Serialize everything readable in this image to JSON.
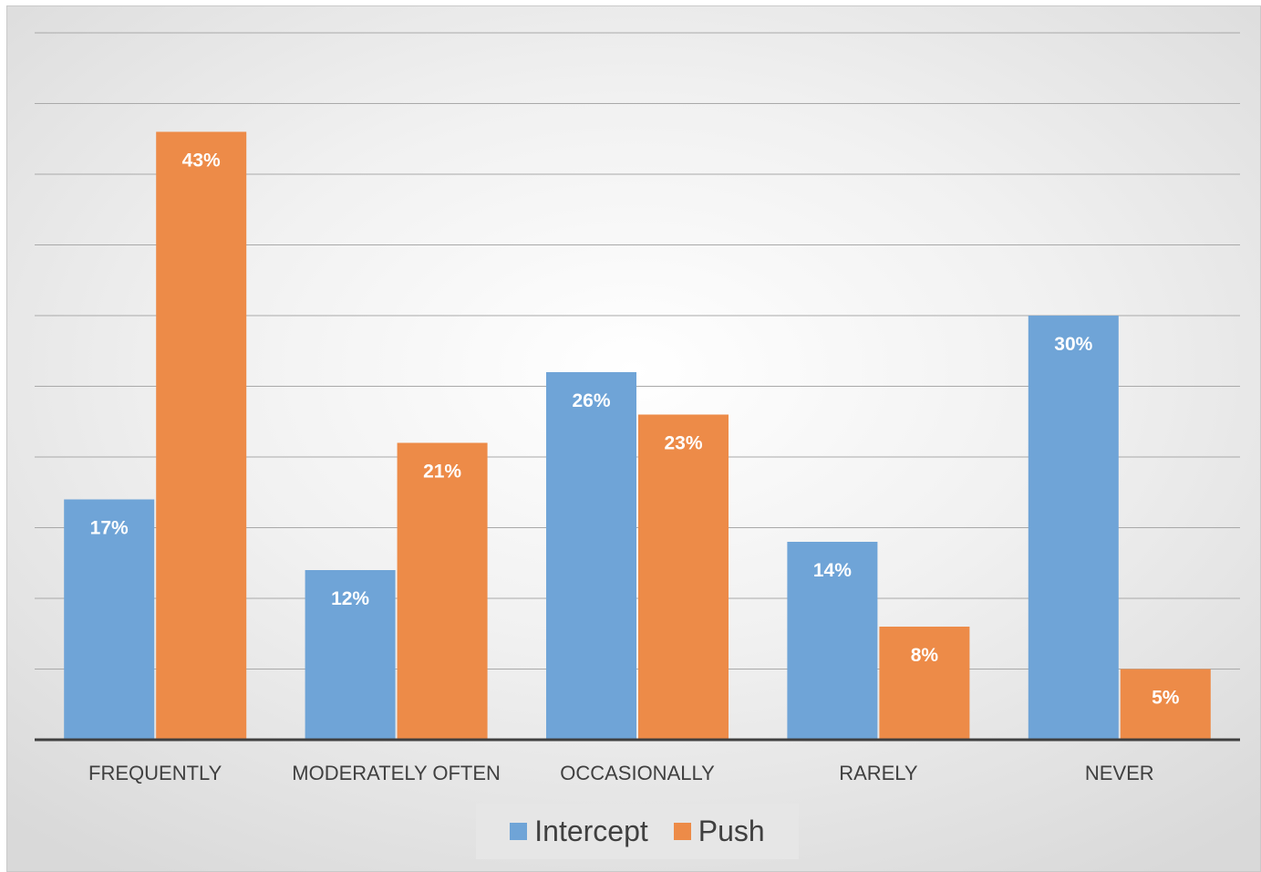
{
  "chart_data": {
    "type": "bar",
    "categories": [
      "FREQUENTLY",
      "MODERATELY OFTEN",
      "OCCASIONALLY",
      "RARELY",
      "NEVER"
    ],
    "series": [
      {
        "name": "Intercept",
        "values": [
          17,
          12,
          26,
          14,
          30
        ],
        "labels": [
          "17%",
          "12%",
          "26%",
          "14%",
          "30%"
        ],
        "color": "#6fa4d7"
      },
      {
        "name": "Push",
        "values": [
          43,
          21,
          23,
          8,
          5
        ],
        "labels": [
          "43%",
          "21%",
          "23%",
          "8%",
          "5%"
        ],
        "color": "#ed8b48"
      }
    ],
    "title": "",
    "xlabel": "",
    "ylabel": "",
    "ylim": [
      0,
      50
    ],
    "grid": true,
    "legend": "bottom"
  },
  "legend": {
    "items": [
      {
        "label": "Intercept",
        "color": "#6fa4d7"
      },
      {
        "label": "Push",
        "color": "#ed8b48"
      }
    ]
  }
}
